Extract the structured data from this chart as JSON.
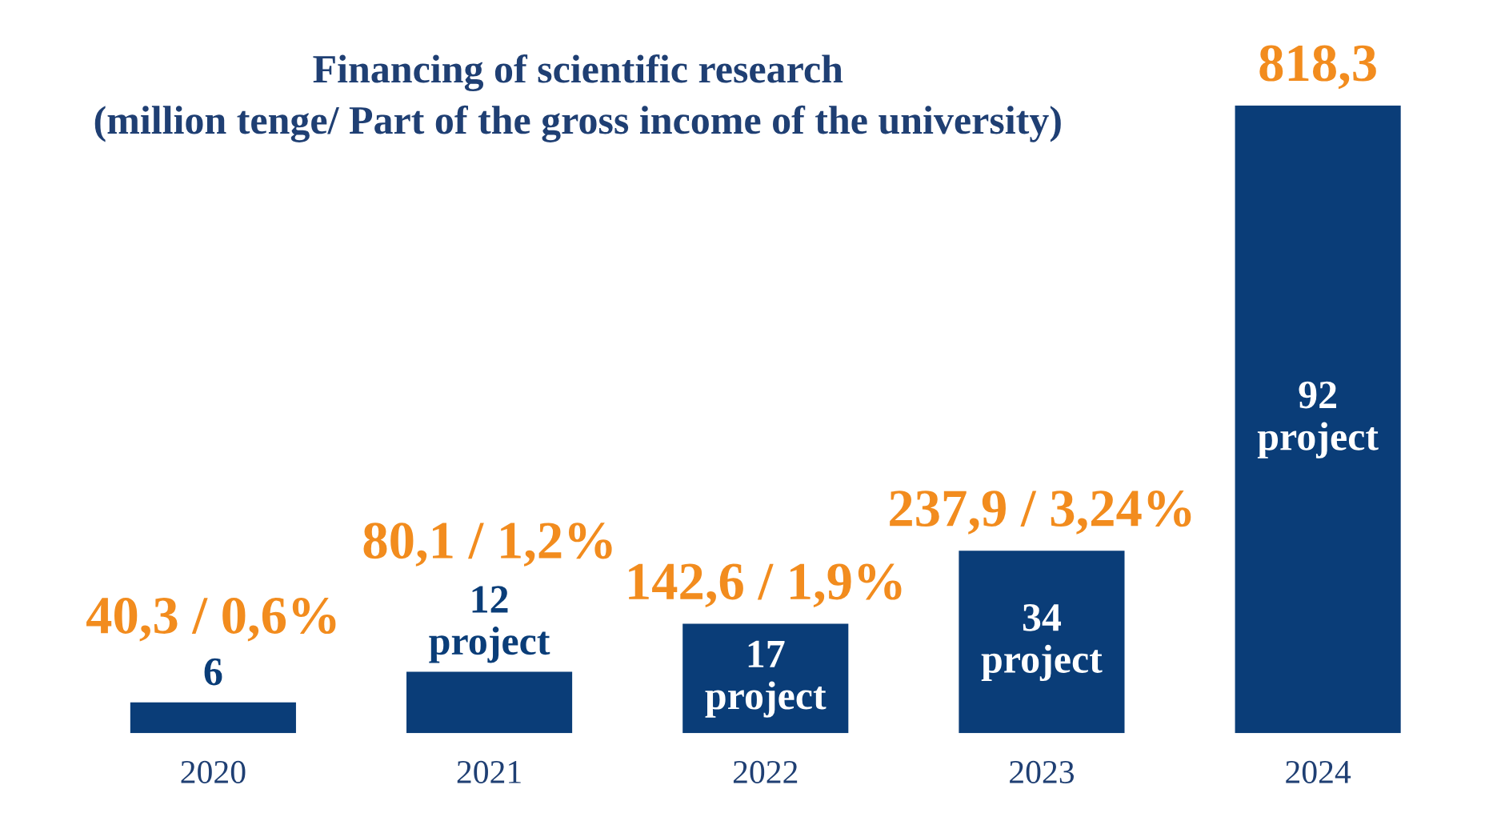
{
  "chart_data": {
    "type": "bar",
    "title": "Financing of scientific research",
    "subtitle": "(million tenge/ Part of the gross income of the university)",
    "categories": [
      "2020",
      "2021",
      "2022",
      "2023",
      "2024"
    ],
    "values": [
      40.3,
      80.1,
      142.6,
      237.9,
      818.3
    ],
    "color": "#0a3d78",
    "value_labels": [
      "40,3 / 0,6%",
      "80,1 / 1,2%",
      "142,6 / 1,9%",
      "237,9 / 3,24%",
      "818,3"
    ],
    "annotations": [
      "6",
      "12\nproject",
      "17\nproject",
      "34\nproject",
      "92\nproject"
    ],
    "grid": false,
    "legend": false
  }
}
